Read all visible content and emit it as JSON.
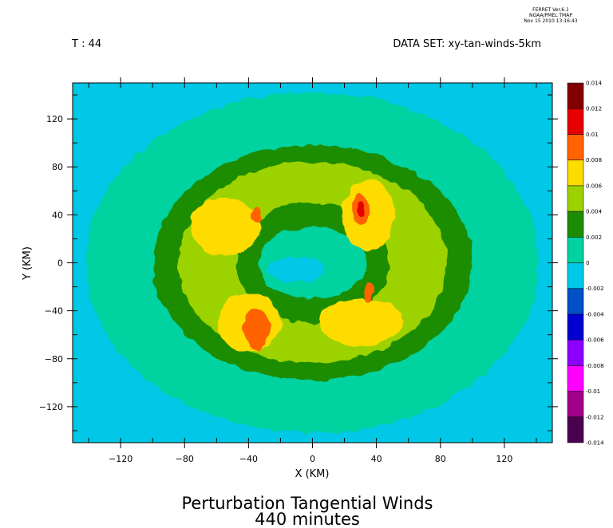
{
  "header": {
    "ferret_line1": "FERRET  Ver.6.1",
    "ferret_line2": "NOAA/PMEL TMAP",
    "ferret_line3": "Nov 15 2010 13:16:43",
    "t_label": "T : 44",
    "dataset_label": "DATA SET: xy-tan-winds-5km"
  },
  "title": {
    "line1": "Perturbation Tangential Winds",
    "line2": "440 minutes"
  },
  "chart_data": {
    "type": "heatmap",
    "xlabel": "X (KM)",
    "ylabel": "Y (KM)",
    "xlim": [
      -150,
      150
    ],
    "ylim": [
      -150,
      150
    ],
    "xticks": [
      -120,
      -80,
      -40,
      0,
      40,
      80,
      120
    ],
    "yticks": [
      -120,
      -80,
      -40,
      0,
      40,
      80,
      120
    ],
    "background_color": "#00c8e6",
    "colorbar": {
      "levels": [
        -0.014,
        -0.012,
        -0.01,
        -0.008,
        -0.006,
        -0.004,
        -0.002,
        0,
        0.002,
        0.004,
        0.006,
        0.008,
        0.01,
        0.012,
        0.014
      ],
      "labels": [
        "-0.014",
        "-0.012",
        "-0.01",
        "-0.008",
        "-0.006",
        "-0.004",
        "-0.002",
        "0",
        "0.002",
        "0.004",
        "0.006",
        "0.008",
        "0.01",
        "0.012",
        "0.014"
      ],
      "colors": [
        "#4b0050",
        "#a0008c",
        "#ff00ff",
        "#8c00ff",
        "#0000d2",
        "#0050c8",
        "#00c8e6",
        "#00d2a0",
        "#1e8c00",
        "#9bd200",
        "#ffdc00",
        "#ff6400",
        "#e60000",
        "#820000"
      ]
    },
    "regions": [
      {
        "level": "0 to 0.002",
        "center": [
          0,
          0
        ],
        "rx": 142,
        "ry": 142,
        "color": "#00d2a0"
      },
      {
        "level": "0.002 to 0.004",
        "center": [
          0,
          0
        ],
        "rx": 100,
        "ry": 98,
        "color": "#1e8c00"
      },
      {
        "level": "0.004 to 0.006",
        "center": [
          0,
          0
        ],
        "rx": 84,
        "ry": 84,
        "color": "#9bd200"
      },
      {
        "level": "0.002 to 0.004",
        "center": [
          0,
          0
        ],
        "rx": 48,
        "ry": 50,
        "color": "#1e8c00"
      },
      {
        "level": "0 to 0.002",
        "center": [
          0,
          0
        ],
        "rx": 34,
        "ry": 30,
        "color": "#00d2a0"
      },
      {
        "level": "-0.002 to 0",
        "center": [
          -10,
          -6
        ],
        "rx": 18,
        "ry": 10,
        "color": "#00c8e6"
      },
      {
        "level": "0.006 to 0.008",
        "center": [
          -55,
          30
        ],
        "rx": 22,
        "ry": 24,
        "color": "#ffdc00"
      },
      {
        "level": "0.006 to 0.008",
        "center": [
          35,
          40
        ],
        "rx": 16,
        "ry": 30,
        "color": "#ffdc00"
      },
      {
        "level": "0.006 to 0.008",
        "center": [
          -40,
          -50
        ],
        "rx": 20,
        "ry": 24,
        "color": "#ffdc00"
      },
      {
        "level": "0.006 to 0.008",
        "center": [
          30,
          -50
        ],
        "rx": 26,
        "ry": 20,
        "color": "#ffdc00"
      },
      {
        "level": "0.008 to 0.01",
        "center": [
          -35,
          -55
        ],
        "rx": 8,
        "ry": 18,
        "color": "#ff6400"
      },
      {
        "level": "0.008 to 0.01",
        "center": [
          30,
          45
        ],
        "rx": 5,
        "ry": 13,
        "color": "#ff6400"
      },
      {
        "level": "0.008 to 0.01",
        "center": [
          -35,
          40
        ],
        "rx": 3,
        "ry": 7,
        "color": "#ff6400"
      },
      {
        "level": "0.008 to 0.01",
        "center": [
          35,
          -25
        ],
        "rx": 3,
        "ry": 7,
        "color": "#ff6400"
      },
      {
        "level": "0.01 to 0.012",
        "center": [
          30,
          45
        ],
        "rx": 2,
        "ry": 6,
        "color": "#e60000"
      }
    ]
  }
}
